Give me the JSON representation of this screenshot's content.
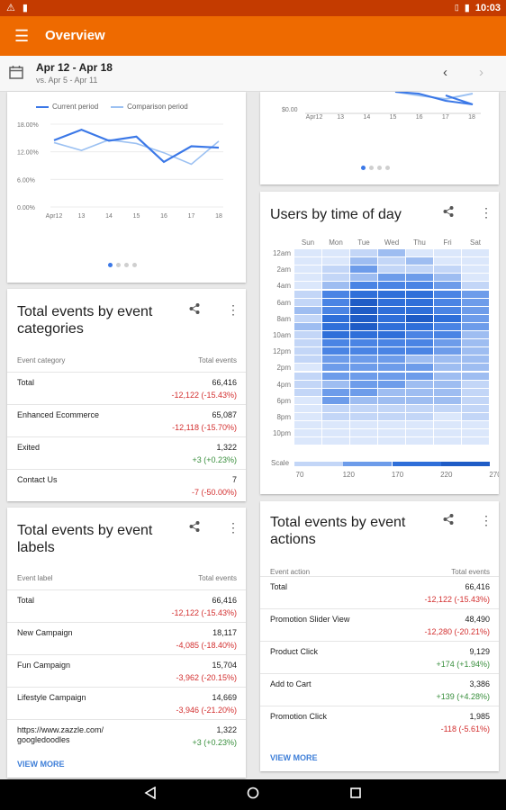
{
  "status": {
    "time": "10:03",
    "left_icons": [
      "warning-icon",
      "sd-card-icon"
    ],
    "right_icons": [
      "no-sim-icon",
      "battery-icon"
    ]
  },
  "appbar": {
    "title": "Overview",
    "menu_icon": "menu-icon"
  },
  "datebar": {
    "range": "Apr 12 - Apr 18",
    "compare": "vs. Apr 5 - Apr 11"
  },
  "line_chart": {
    "legend": {
      "current": "Current period",
      "comparison": "Comparison period"
    },
    "chart_data": {
      "type": "line",
      "categories": [
        "Apr12",
        "13",
        "14",
        "15",
        "16",
        "17",
        "18"
      ],
      "yticks": [
        "18.00%",
        "12.00%",
        "6.00%",
        "0.00%"
      ],
      "ylim": [
        0,
        18
      ],
      "series": [
        {
          "name": "Current period",
          "values": [
            14.5,
            16.8,
            14.4,
            15.3,
            9.8,
            13.2,
            12.9
          ],
          "color": "#3b78e7"
        },
        {
          "name": "Comparison period",
          "values": [
            14.0,
            12.3,
            14.6,
            13.8,
            11.8,
            9.3,
            14.3
          ],
          "color": "#9cc1f2"
        }
      ]
    }
  },
  "top_right_chart": {
    "ytick": "$0.00",
    "xlabels": [
      "Apr12",
      "13",
      "14",
      "15",
      "16",
      "17",
      "18"
    ]
  },
  "events_categories": {
    "title": "Total events by event categories",
    "col_label": "Event category",
    "col_value": "Total events",
    "rows": [
      {
        "label": "Total",
        "value": "66,416",
        "change": "-12,122 (-15.43%)",
        "dir": "neg"
      },
      {
        "label": "Enhanced Ecommerce",
        "value": "65,087",
        "change": "-12,118 (-15.70%)",
        "dir": "neg"
      },
      {
        "label": "Exited",
        "value": "1,322",
        "change": "+3 (+0.23%)",
        "dir": "pos"
      },
      {
        "label": "Contact Us",
        "value": "7",
        "change": "-7 (-50.00%)",
        "dir": "neg"
      }
    ]
  },
  "events_labels": {
    "title": "Total events by event labels",
    "col_label": "Event label",
    "col_value": "Total events",
    "rows": [
      {
        "label": "Total",
        "value": "66,416",
        "change": "-12,122 (-15.43%)",
        "dir": "neg"
      },
      {
        "label": "New Campaign",
        "value": "18,117",
        "change": "-4,085 (-18.40%)",
        "dir": "neg"
      },
      {
        "label": "Fun Campaign",
        "value": "15,704",
        "change": "-3,962 (-20.15%)",
        "dir": "neg"
      },
      {
        "label": "Lifestyle Campaign",
        "value": "14,669",
        "change": "-3,946 (-21.20%)",
        "dir": "neg"
      },
      {
        "label": "https://www.zazzle.com/ googledoodles",
        "value": "1,322",
        "change": "+3 (+0.23%)",
        "dir": "pos"
      }
    ],
    "view_more": "VIEW MORE"
  },
  "users_time": {
    "title": "Users by time of day",
    "days": [
      "Sun",
      "Mon",
      "Tue",
      "Wed",
      "Thu",
      "Fri",
      "Sat"
    ],
    "hours": [
      "12am",
      "2am",
      "4am",
      "6am",
      "8am",
      "10am",
      "12pm",
      "2pm",
      "4pm",
      "6pm",
      "8pm",
      "10pm"
    ],
    "scale_label": "Scale",
    "scale_ticks": [
      "70",
      "120",
      "170",
      "220",
      "270"
    ],
    "colors": [
      "#dbe7fb",
      "#c3d6f7",
      "#9ebdf1",
      "#6d9cea",
      "#4a84e4",
      "#2f6fd9",
      "#1f5cc6"
    ],
    "levels": [
      [
        0,
        0,
        1,
        2,
        0,
        0,
        0
      ],
      [
        0,
        0,
        2,
        1,
        2,
        0,
        0
      ],
      [
        0,
        1,
        3,
        1,
        1,
        1,
        0
      ],
      [
        0,
        1,
        2,
        3,
        3,
        2,
        0
      ],
      [
        0,
        2,
        4,
        4,
        4,
        3,
        1
      ],
      [
        1,
        4,
        5,
        5,
        5,
        4,
        3
      ],
      [
        1,
        4,
        6,
        5,
        5,
        4,
        3
      ],
      [
        2,
        4,
        6,
        5,
        5,
        4,
        3
      ],
      [
        1,
        5,
        6,
        5,
        6,
        5,
        3
      ],
      [
        2,
        5,
        6,
        5,
        5,
        4,
        3
      ],
      [
        1,
        5,
        5,
        5,
        4,
        4,
        2
      ],
      [
        1,
        4,
        4,
        4,
        4,
        3,
        2
      ],
      [
        1,
        4,
        4,
        4,
        4,
        3,
        2
      ],
      [
        1,
        3,
        3,
        3,
        2,
        2,
        2
      ],
      [
        0,
        3,
        3,
        3,
        3,
        2,
        2
      ],
      [
        1,
        3,
        3,
        3,
        3,
        2,
        2
      ],
      [
        1,
        2,
        3,
        3,
        2,
        2,
        1
      ],
      [
        1,
        3,
        3,
        2,
        2,
        2,
        1
      ],
      [
        0,
        3,
        2,
        2,
        2,
        2,
        1
      ],
      [
        0,
        1,
        1,
        1,
        1,
        1,
        1
      ],
      [
        0,
        1,
        1,
        1,
        1,
        0,
        1
      ],
      [
        0,
        0,
        0,
        0,
        0,
        0,
        0
      ],
      [
        0,
        0,
        0,
        0,
        0,
        0,
        0
      ],
      [
        0,
        0,
        0,
        0,
        0,
        0,
        0
      ]
    ]
  },
  "events_actions": {
    "title": "Total events by event actions",
    "col_label": "Event action",
    "col_value": "Total events",
    "rows": [
      {
        "label": "Total",
        "value": "66,416",
        "change": "-12,122 (-15.43%)",
        "dir": "neg"
      },
      {
        "label": "Promotion Slider View",
        "value": "48,490",
        "change": "-12,280 (-20.21%)",
        "dir": "neg"
      },
      {
        "label": "Product Click",
        "value": "9,129",
        "change": "+174 (+1.94%)",
        "dir": "pos"
      },
      {
        "label": "Add to Cart",
        "value": "3,386",
        "change": "+139 (+4.28%)",
        "dir": "pos"
      },
      {
        "label": "Promotion Click",
        "value": "1,985",
        "change": "-118 (-5.61%)",
        "dir": "neg"
      }
    ],
    "view_more": "VIEW MORE"
  }
}
